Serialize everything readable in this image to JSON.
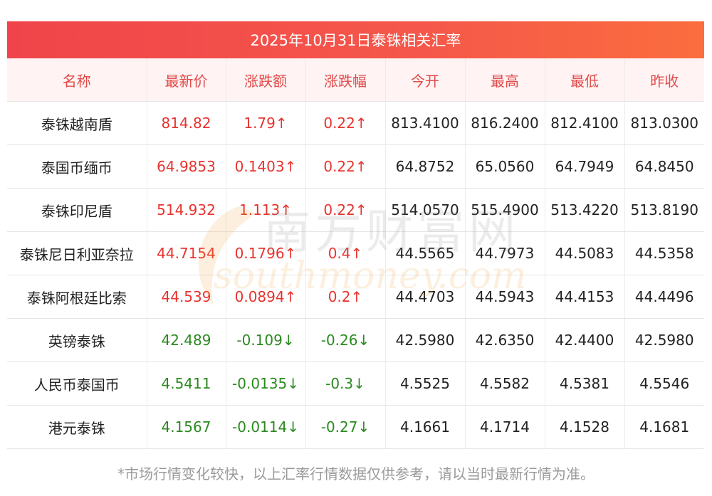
{
  "title": "2025年10月31日泰铢相关汇率",
  "headers": [
    "名称",
    "最新价",
    "涨跌额",
    "涨跌幅",
    "今开",
    "最高",
    "最低",
    "昨收"
  ],
  "rows": [
    {
      "name": "泰铢越南盾",
      "latest": "814.82",
      "change": "1.79↑",
      "pct": "0.22↑",
      "open": "813.4100",
      "high": "816.2400",
      "low": "812.4100",
      "prev": "813.0300",
      "dir": "up"
    },
    {
      "name": "泰国币缅币",
      "latest": "64.9853",
      "change": "0.1403↑",
      "pct": "0.22↑",
      "open": "64.8752",
      "high": "65.0560",
      "low": "64.7949",
      "prev": "64.8450",
      "dir": "up"
    },
    {
      "name": "泰铢印尼盾",
      "latest": "514.932",
      "change": "1.113↑",
      "pct": "0.22↑",
      "open": "514.0570",
      "high": "515.4900",
      "low": "513.4220",
      "prev": "513.8190",
      "dir": "up"
    },
    {
      "name": "泰铢尼日利亚奈拉",
      "latest": "44.7154",
      "change": "0.1796↑",
      "pct": "0.4↑",
      "open": "44.5565",
      "high": "44.7973",
      "low": "44.5083",
      "prev": "44.5358",
      "dir": "up"
    },
    {
      "name": "泰铢阿根廷比索",
      "latest": "44.539",
      "change": "0.0894↑",
      "pct": "0.2↑",
      "open": "44.4703",
      "high": "44.5943",
      "low": "44.4153",
      "prev": "44.4496",
      "dir": "up"
    },
    {
      "name": "英镑泰铢",
      "latest": "42.489",
      "change": "-0.109↓",
      "pct": "-0.26↓",
      "open": "42.5980",
      "high": "42.6350",
      "low": "42.4400",
      "prev": "42.5980",
      "dir": "down"
    },
    {
      "name": "人民币泰国币",
      "latest": "4.5411",
      "change": "-0.0135↓",
      "pct": "-0.3↓",
      "open": "4.5525",
      "high": "4.5582",
      "low": "4.5381",
      "prev": "4.5546",
      "dir": "down"
    },
    {
      "name": "港元泰铢",
      "latest": "4.1567",
      "change": "-0.0114↓",
      "pct": "-0.27↓",
      "open": "4.1661",
      "high": "4.1714",
      "low": "4.1528",
      "prev": "4.1681",
      "dir": "down"
    }
  ],
  "watermark": {
    "cn": "南方财富网",
    "en": "southmoney.com"
  },
  "footnote": "*市场行情变化较快，以上汇率行情数据仅供参考，请以当时最新行情为准。",
  "colors": {
    "up": "#e8332f",
    "down": "#2a8a1f",
    "header_text": "#e24a4a",
    "title_bg": "#f0444a"
  }
}
